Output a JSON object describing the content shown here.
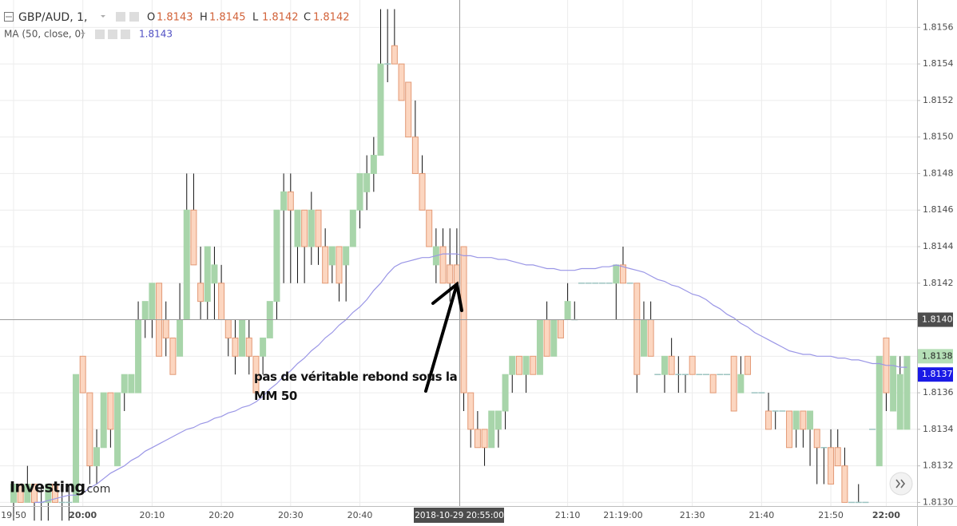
{
  "chart_data": {
    "type": "candlestick",
    "title": "GBP/AUD, 1,",
    "legend_ohlc": [
      {
        "key": "O",
        "value": 1.8143
      },
      {
        "key": "H",
        "value": 1.8145
      },
      {
        "key": "L",
        "value": 1.8142
      },
      {
        "key": "C",
        "value": 1.8142
      }
    ],
    "categories": [
      "19:50",
      null,
      null,
      null,
      null,
      null,
      null,
      null,
      null,
      null,
      "20:00",
      null,
      null,
      null,
      null,
      null,
      null,
      null,
      null,
      null,
      "20:10",
      null,
      null,
      null,
      null,
      null,
      null,
      null,
      null,
      null,
      "20:20",
      null,
      null,
      null,
      null,
      null,
      null,
      null,
      null,
      null,
      "20:30",
      null,
      null,
      null,
      null,
      null,
      null,
      null,
      null,
      null,
      "20:40",
      null,
      null,
      null,
      null,
      null,
      null,
      null,
      null,
      null,
      null,
      null,
      null,
      null,
      null,
      null,
      null,
      null,
      null,
      null,
      null,
      null,
      null,
      null,
      null,
      null,
      null,
      null,
      null,
      null,
      "21:10",
      null,
      null,
      null,
      null,
      null,
      null,
      null,
      "21:19:00",
      null,
      null,
      null,
      null,
      null,
      null,
      null,
      null,
      null,
      "21:30",
      null,
      null,
      null,
      null,
      null,
      null,
      null,
      null,
      null,
      "21:40",
      null,
      null,
      null,
      null,
      null,
      null,
      null,
      null,
      null,
      "21:50",
      null,
      null,
      null,
      null,
      null,
      null,
      null,
      "22:00",
      null,
      null,
      null
    ],
    "open": [
      1.813,
      1.8131,
      1.813,
      1.8131,
      1.813,
      1.813,
      1.8131,
      1.813,
      1.813,
      1.813,
      1.8138,
      1.8136,
      1.8132,
      1.8133,
      1.8136,
      1.8132,
      1.8136,
      1.8136,
      1.8136,
      1.814,
      1.814,
      1.8142,
      1.814,
      1.8139,
      1.8138,
      1.814,
      1.8146,
      1.8142,
      1.8141,
      1.8142,
      1.8142,
      1.814,
      1.8139,
      1.8138,
      1.8139,
      1.8138,
      1.8138,
      1.8139,
      1.8141,
      1.8146,
      1.8147,
      1.8144,
      1.8146,
      1.8144,
      1.8146,
      1.8144,
      1.8143,
      1.8144,
      1.8143,
      1.8144,
      1.8146,
      1.8147,
      1.8148,
      1.8149,
      1.8154,
      1.8155,
      1.8154,
      1.8153,
      1.815,
      1.8148,
      1.8146,
      1.8143,
      1.8144,
      1.8143,
      1.8143,
      1.8144,
      1.8136,
      1.8134,
      1.8134,
      1.8133,
      1.8134,
      1.8135,
      1.8137,
      1.8138,
      1.8137,
      1.8138,
      1.8137,
      1.814,
      1.8138,
      1.814,
      1.814,
      1.814,
      1.8142,
      1.8142,
      1.8142,
      1.8142,
      1.8142,
      1.8142,
      1.8143,
      1.8142,
      1.8142,
      1.8138,
      1.814,
      1.8137,
      1.8137,
      1.8138,
      1.8137,
      1.8137,
      1.8138,
      1.8137,
      1.8137,
      1.8137,
      1.8137,
      1.8137,
      1.8138,
      1.8136,
      1.8138,
      1.8136,
      1.8136,
      1.8135,
      1.8135,
      1.8135,
      1.8135,
      1.8134,
      1.8135,
      1.8134,
      1.8134,
      1.8133,
      1.8133,
      1.8133,
      1.8132,
      1.813,
      1.813,
      1.813,
      1.8134,
      1.8132,
      1.8139,
      1.8135,
      1.8134,
      1.8134
    ],
    "high": [
      1.8131,
      1.8131,
      1.8132,
      1.8131,
      1.8131,
      1.8131,
      1.8131,
      1.8131,
      1.8131,
      1.8137,
      1.8138,
      1.8136,
      1.8134,
      1.8136,
      1.8136,
      1.8136,
      1.8137,
      1.8137,
      1.8141,
      1.8141,
      1.8142,
      1.8142,
      1.8141,
      1.8139,
      1.8142,
      1.8148,
      1.8148,
      1.8144,
      1.8144,
      1.8144,
      1.8143,
      1.814,
      1.814,
      1.814,
      1.814,
      1.8138,
      1.8139,
      1.8141,
      1.8146,
      1.8148,
      1.8148,
      1.8146,
      1.8146,
      1.8147,
      1.8146,
      1.8145,
      1.8144,
      1.8144,
      1.8144,
      1.8146,
      1.8148,
      1.8149,
      1.815,
      1.8157,
      1.8157,
      1.8157,
      1.8154,
      1.8153,
      1.8152,
      1.8149,
      1.8146,
      1.8145,
      1.8145,
      1.8145,
      1.8145,
      1.8144,
      1.8136,
      1.8135,
      1.8134,
      1.8135,
      1.8135,
      1.8137,
      1.8138,
      1.8138,
      1.8138,
      1.8138,
      1.814,
      1.8141,
      1.814,
      1.814,
      1.8142,
      1.8141,
      1.8142,
      1.8142,
      1.8142,
      1.8142,
      1.8142,
      1.8143,
      1.8144,
      1.8142,
      1.8142,
      1.8141,
      1.8141,
      1.8137,
      1.8138,
      1.8139,
      1.8138,
      1.8137,
      1.8138,
      1.8137,
      1.8137,
      1.8137,
      1.8137,
      1.8137,
      1.8138,
      1.8138,
      1.8138,
      1.8136,
      1.8136,
      1.8136,
      1.8135,
      1.8135,
      1.8135,
      1.8135,
      1.8135,
      1.8135,
      1.8134,
      1.8133,
      1.8134,
      1.8134,
      1.8133,
      1.813,
      1.8131,
      1.813,
      1.8134,
      1.8138,
      1.8139,
      1.8138,
      1.8138,
      1.8138
    ],
    "low": [
      1.8129,
      1.813,
      1.813,
      1.8129,
      1.8129,
      1.8129,
      1.813,
      1.8129,
      1.8129,
      1.813,
      1.8136,
      1.8131,
      1.8131,
      1.8133,
      1.8133,
      1.8132,
      1.8135,
      1.8136,
      1.8136,
      1.8139,
      1.8139,
      1.8138,
      1.8138,
      1.8137,
      1.8138,
      1.814,
      1.8143,
      1.814,
      1.814,
      1.814,
      1.814,
      1.8138,
      1.8137,
      1.8138,
      1.8137,
      1.8136,
      1.8137,
      1.8139,
      1.814,
      1.8142,
      1.8142,
      1.8142,
      1.8142,
      1.8143,
      1.8143,
      1.8142,
      1.8142,
      1.8141,
      1.8141,
      1.8144,
      1.8145,
      1.8146,
      1.8147,
      1.8149,
      1.8153,
      1.8154,
      1.8152,
      1.815,
      1.8148,
      1.8146,
      1.8144,
      1.8142,
      1.8142,
      1.8141,
      1.8142,
      1.8135,
      1.8133,
      1.8133,
      1.8132,
      1.8133,
      1.8133,
      1.8134,
      1.8136,
      1.8137,
      1.8136,
      1.8137,
      1.8137,
      1.8138,
      1.8138,
      1.8139,
      1.814,
      1.814,
      1.8142,
      1.8142,
      1.8142,
      1.8142,
      1.8142,
      1.814,
      1.8142,
      1.8142,
      1.8136,
      1.8138,
      1.8138,
      1.8137,
      1.8136,
      1.8137,
      1.8136,
      1.8136,
      1.8137,
      1.8137,
      1.8137,
      1.8136,
      1.8137,
      1.8137,
      1.8135,
      1.8136,
      1.8137,
      1.8136,
      1.8136,
      1.8134,
      1.8134,
      1.8135,
      1.8133,
      1.8133,
      1.8133,
      1.8132,
      1.8131,
      1.8131,
      1.8131,
      1.8132,
      1.813,
      1.813,
      1.813,
      1.813,
      1.8134,
      1.8132,
      1.8135,
      1.8135,
      1.8134,
      1.8134
    ],
    "close": [
      1.8131,
      1.813,
      1.8131,
      1.813,
      1.813,
      1.8131,
      1.813,
      1.813,
      1.813,
      1.8137,
      1.8136,
      1.8132,
      1.8133,
      1.8136,
      1.8134,
      1.8136,
      1.8137,
      1.8137,
      1.814,
      1.8141,
      1.8142,
      1.8138,
      1.8139,
      1.8137,
      1.814,
      1.8146,
      1.8143,
      1.8141,
      1.8144,
      1.8143,
      1.814,
      1.8139,
      1.8138,
      1.814,
      1.8138,
      1.8136,
      1.8139,
      1.8141,
      1.8146,
      1.8147,
      1.8146,
      1.8146,
      1.8144,
      1.8146,
      1.8144,
      1.8142,
      1.8144,
      1.8142,
      1.8144,
      1.8146,
      1.8148,
      1.8148,
      1.8149,
      1.8154,
      1.8154,
      1.8154,
      1.8152,
      1.815,
      1.8148,
      1.8146,
      1.8144,
      1.8144,
      1.8142,
      1.8142,
      1.8142,
      1.8136,
      1.8134,
      1.8133,
      1.8133,
      1.8135,
      1.8135,
      1.8137,
      1.8138,
      1.8137,
      1.8138,
      1.8137,
      1.814,
      1.8138,
      1.814,
      1.8139,
      1.8141,
      1.814,
      1.8142,
      1.8142,
      1.8142,
      1.8142,
      1.8142,
      1.8143,
      1.8142,
      1.8142,
      1.8137,
      1.814,
      1.8138,
      1.8137,
      1.8138,
      1.8137,
      1.8137,
      1.8137,
      1.8137,
      1.8137,
      1.8137,
      1.8136,
      1.8137,
      1.8137,
      1.8135,
      1.8137,
      1.8137,
      1.8136,
      1.8136,
      1.8134,
      1.8135,
      1.8135,
      1.8133,
      1.8135,
      1.8134,
      1.8135,
      1.8133,
      1.8133,
      1.8131,
      1.8132,
      1.813,
      1.813,
      1.813,
      1.813,
      1.8134,
      1.8138,
      1.8136,
      1.8138,
      1.8137,
      1.8138
    ],
    "up_color": "#a8d5aa",
    "down_color": "#fcd6c0",
    "down_border": "#e39a76",
    "doji_color": "#9cc3c0",
    "wick_color": "#111111",
    "ma": {
      "name": "MA (50, close, 0)",
      "color": "#9a96e6",
      "value": 1.8143,
      "values": [
        null,
        null,
        null,
        1.813,
        1.813,
        1.81301,
        1.81302,
        1.81303,
        1.81304,
        1.81304,
        1.81305,
        1.81308,
        1.8131,
        1.81313,
        1.81316,
        1.81318,
        1.8132,
        1.81323,
        1.81325,
        1.81328,
        1.8133,
        1.81332,
        1.81334,
        1.81336,
        1.81338,
        1.8134,
        1.81341,
        1.81343,
        1.81344,
        1.81346,
        1.81347,
        1.81349,
        1.8135,
        1.81352,
        1.81353,
        1.81355,
        1.81358,
        1.81362,
        1.81365,
        1.81369,
        1.81372,
        1.81376,
        1.81379,
        1.81383,
        1.81386,
        1.8139,
        1.81393,
        1.81397,
        1.814,
        1.81404,
        1.81407,
        1.81411,
        1.81416,
        1.8142,
        1.81425,
        1.81429,
        1.81431,
        1.81432,
        1.81433,
        1.81434,
        1.81434,
        1.81435,
        1.81436,
        1.81436,
        1.81436,
        1.81435,
        1.81435,
        1.81434,
        1.81434,
        1.81434,
        1.81433,
        1.81433,
        1.81432,
        1.81431,
        1.8143,
        1.8143,
        1.81429,
        1.81428,
        1.81428,
        1.81427,
        1.81427,
        1.81427,
        1.81428,
        1.81428,
        1.81428,
        1.81429,
        1.81429,
        1.8143,
        1.81429,
        1.81428,
        1.81427,
        1.81426,
        1.81424,
        1.81422,
        1.81421,
        1.81419,
        1.81418,
        1.81416,
        1.81414,
        1.81413,
        1.81411,
        1.81408,
        1.81406,
        1.81403,
        1.81401,
        1.81398,
        1.81396,
        1.81393,
        1.81391,
        1.81389,
        1.81387,
        1.81385,
        1.81383,
        1.81382,
        1.81381,
        1.81381,
        1.8138,
        1.8138,
        1.8138,
        1.81379,
        1.81379,
        1.81378,
        1.81378,
        1.81377,
        1.81376,
        1.81376,
        1.81375,
        1.81375,
        1.81374,
        1.81374
      ]
    },
    "ylim": [
      1.81298,
      1.81575
    ],
    "yticks": [
      {
        "value": 1.813,
        "label": "1.8130"
      },
      1.8132,
      1.8134,
      1.8136,
      1.8138,
      {
        "value": 1.814,
        "label": "1.8140"
      },
      1.8142,
      1.8144,
      1.8146,
      1.8148,
      {
        "value": 1.815,
        "label": "1.8150"
      },
      1.8152,
      1.8154,
      1.8156
    ],
    "grid": true,
    "crosshair_price": {
      "value": 1.814,
      "label": "1.8140"
    },
    "crosshair_time": "2018-10-29 20:55:00",
    "last_price": 1.8138,
    "ma_price": 1.8137,
    "annotation": "pas de véritable rebond sous la MM 50",
    "logo": {
      "name": "Investing",
      "suffix": ".com"
    }
  }
}
